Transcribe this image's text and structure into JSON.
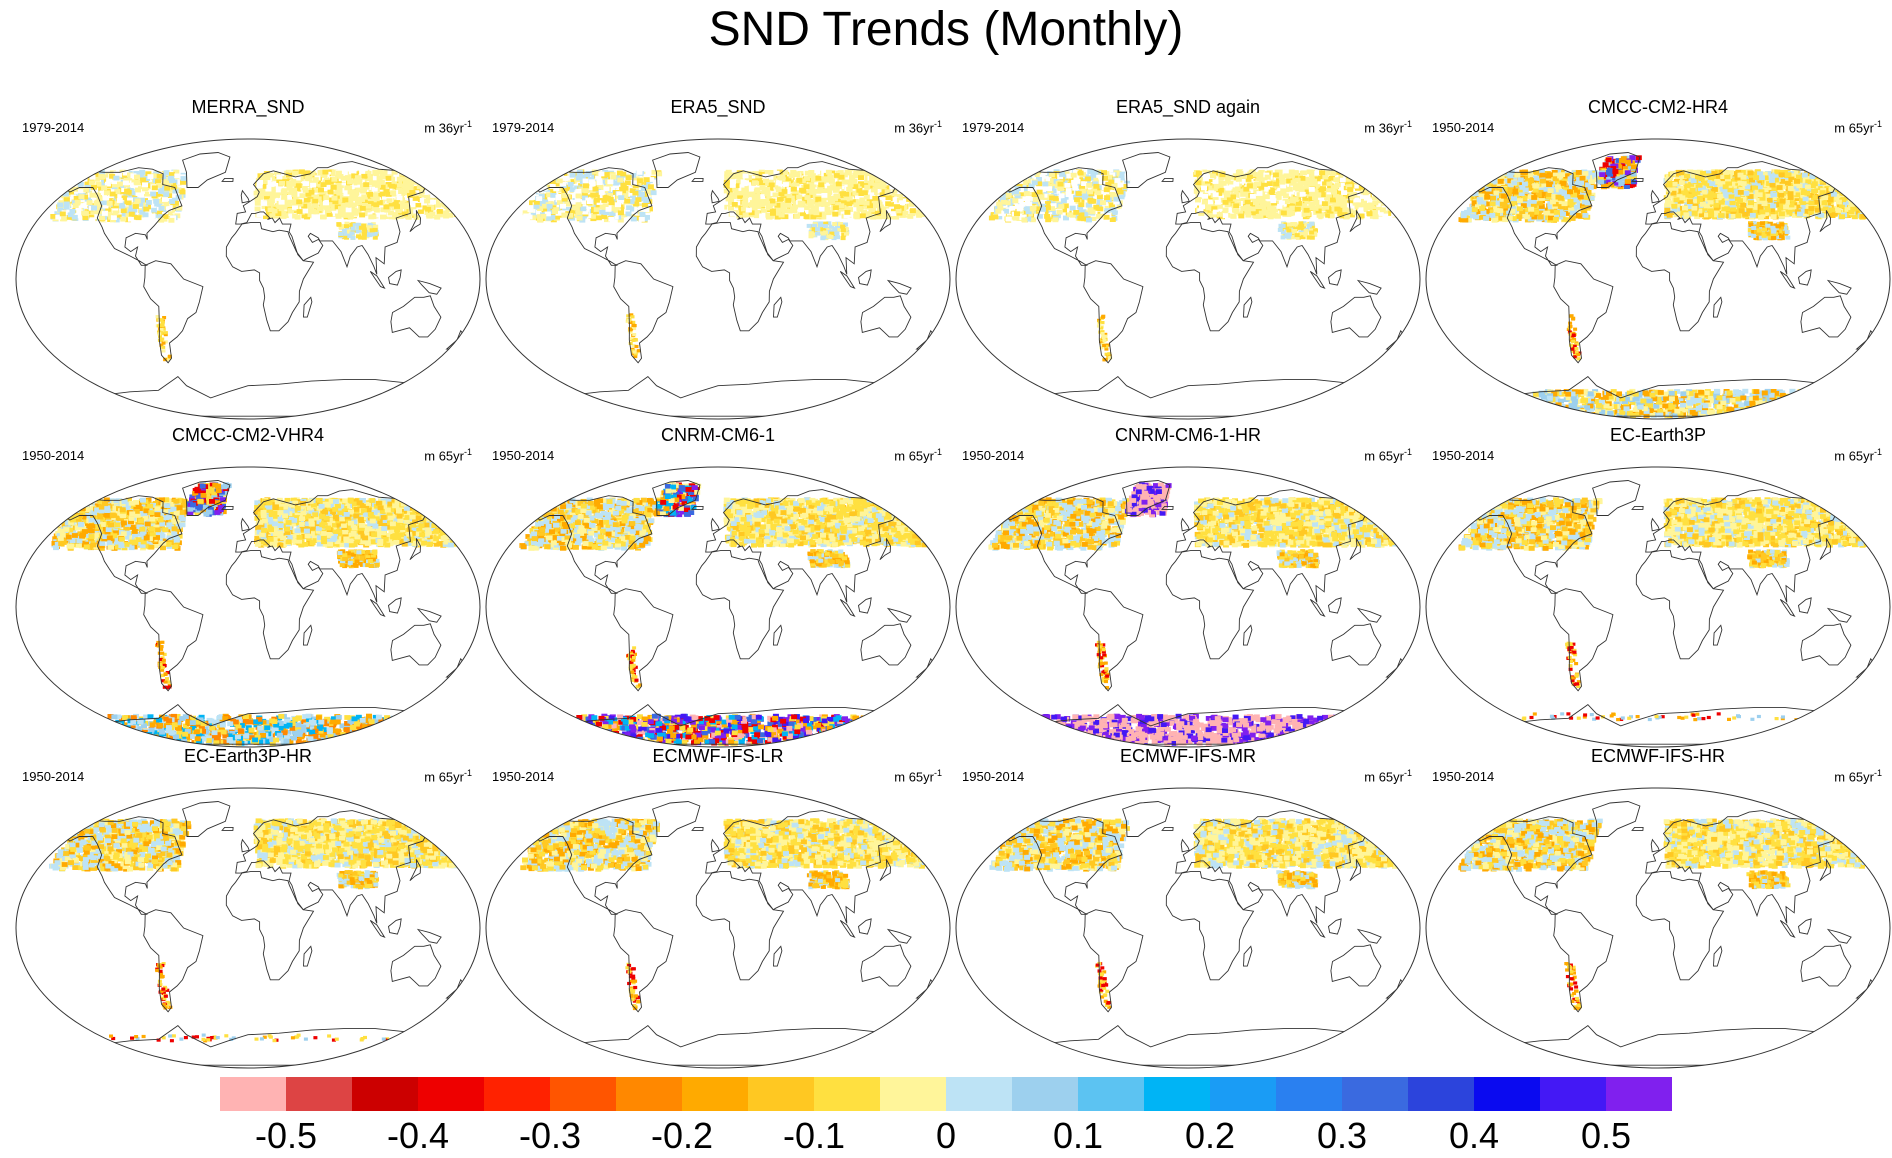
{
  "title": "SND Trends (Monthly)",
  "panels": [
    {
      "title": "MERRA_SND",
      "period": "1979-2014",
      "units": "m 36yr",
      "units_exp": "-1",
      "pattern": "light",
      "antarctic": "none"
    },
    {
      "title": "ERA5_SND",
      "period": "1979-2014",
      "units": "m 36yr",
      "units_exp": "-1",
      "pattern": "light",
      "antarctic": "none"
    },
    {
      "title": "ERA5_SND again",
      "period": "1979-2014",
      "units": "m 36yr",
      "units_exp": "-1",
      "pattern": "light",
      "antarctic": "none"
    },
    {
      "title": "CMCC-CM2-HR4",
      "period": "1950-2014",
      "units": "m 65yr",
      "units_exp": "-1",
      "pattern": "model",
      "antarctic": "mixed"
    },
    {
      "title": "CMCC-CM2-VHR4",
      "period": "1950-2014",
      "units": "m 65yr",
      "units_exp": "-1",
      "pattern": "model",
      "antarctic": "mixed-orange"
    },
    {
      "title": "CNRM-CM6-1",
      "period": "1950-2014",
      "units": "m 65yr",
      "units_exp": "-1",
      "pattern": "model",
      "antarctic": "extreme"
    },
    {
      "title": "CNRM-CM6-1-HR",
      "period": "1950-2014",
      "units": "m 65yr",
      "units_exp": "-1",
      "pattern": "model",
      "antarctic": "extreme-pink"
    },
    {
      "title": "EC-Earth3P",
      "period": "1950-2014",
      "units": "m 65yr",
      "units_exp": "-1",
      "pattern": "model",
      "antarctic": "edge"
    },
    {
      "title": "EC-Earth3P-HR",
      "period": "1950-2014",
      "units": "m 65yr",
      "units_exp": "-1",
      "pattern": "model",
      "antarctic": "edge"
    },
    {
      "title": "ECMWF-IFS-LR",
      "period": "1950-2014",
      "units": "m 65yr",
      "units_exp": "-1",
      "pattern": "model",
      "antarctic": "none"
    },
    {
      "title": "ECMWF-IFS-MR",
      "period": "1950-2014",
      "units": "m 65yr",
      "units_exp": "-1",
      "pattern": "model",
      "antarctic": "none"
    },
    {
      "title": "ECMWF-IFS-HR",
      "period": "1950-2014",
      "units": "m 65yr",
      "units_exp": "-1",
      "pattern": "model",
      "antarctic": "none"
    }
  ],
  "colorbar": {
    "colors": [
      "#ffb3b3",
      "#dd4444",
      "#cc0000",
      "#ee0000",
      "#ff2200",
      "#ff5500",
      "#ff8800",
      "#ffaa00",
      "#ffc822",
      "#ffe040",
      "#fff59a",
      "#bde3f5",
      "#9dd0ee",
      "#5cc3f2",
      "#00b4f5",
      "#1a9cf5",
      "#2a80f0",
      "#3a6ae0",
      "#2c44dc",
      "#0a0af0",
      "#4418f5",
      "#8020ee"
    ],
    "labels": [
      "-0.5",
      "-0.4",
      "-0.3",
      "-0.2",
      "-0.1",
      "0",
      "0.1",
      "0.2",
      "0.3",
      "0.4",
      "0.5"
    ],
    "label_boundaries": [
      1,
      3,
      5,
      7,
      9,
      11,
      13,
      15,
      17,
      19,
      21
    ]
  }
}
